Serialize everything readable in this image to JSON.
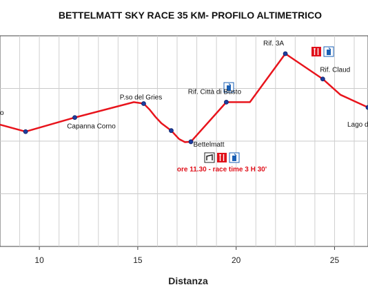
{
  "chart_data": {
    "type": "line",
    "title": "BETTELMATT SKY RACE 35 KM- PROFILO ALTIMETRICO",
    "xlabel": "Distanza",
    "ylabel": "",
    "xlim": [
      8,
      26.7
    ],
    "ylim": [
      0,
      1
    ],
    "x_ticks": [
      10,
      15,
      20,
      25
    ],
    "grid": true,
    "line_color": "#e8141c",
    "marker_color": "#1f3d9e",
    "series": [
      {
        "x": [
          8,
          9.3,
          11.8,
          14.8,
          15.3,
          15.6,
          15.9,
          16.2,
          16.7,
          17.1,
          17.4,
          17.7,
          19.5,
          20.7,
          22.5,
          24.4,
          25.3,
          26.7
        ],
        "y": [
          0.578,
          0.545,
          0.612,
          0.685,
          0.678,
          0.65,
          0.615,
          0.585,
          0.55,
          0.51,
          0.495,
          0.497,
          0.685,
          0.685,
          0.915,
          0.795,
          0.72,
          0.66
        ]
      }
    ],
    "markers": [
      {
        "x": 9.3,
        "y": 0.545
      },
      {
        "x": 11.8,
        "y": 0.612
      },
      {
        "x": 15.3,
        "y": 0.678
      },
      {
        "x": 16.7,
        "y": 0.55
      },
      {
        "x": 17.7,
        "y": 0.497
      },
      {
        "x": 19.5,
        "y": 0.685
      },
      {
        "x": 22.5,
        "y": 0.915
      },
      {
        "x": 24.4,
        "y": 0.795
      },
      {
        "x": 26.7,
        "y": 0.66
      }
    ],
    "labels": [
      {
        "text": "o",
        "x": 8,
        "y": 0.578
      },
      {
        "text": "Capanna Corno",
        "x": 11.8,
        "y": 0.612
      },
      {
        "text": "P.so del Gries",
        "x": 15.3,
        "y": 0.678
      },
      {
        "text": "Rif. Città di Busto",
        "x": 19.5,
        "y": 0.685
      },
      {
        "text": "Bettelmatt",
        "x": 17.7,
        "y": 0.497
      },
      {
        "text": "Rif. 3A",
        "x": 22.5,
        "y": 0.915
      },
      {
        "text": "Rif. Claud",
        "x": 24.4,
        "y": 0.795
      },
      {
        "text": "Lago d",
        "x": 26.7,
        "y": 0.66
      }
    ],
    "annotation": "ore 11.30 - race time 3 H 30'"
  }
}
